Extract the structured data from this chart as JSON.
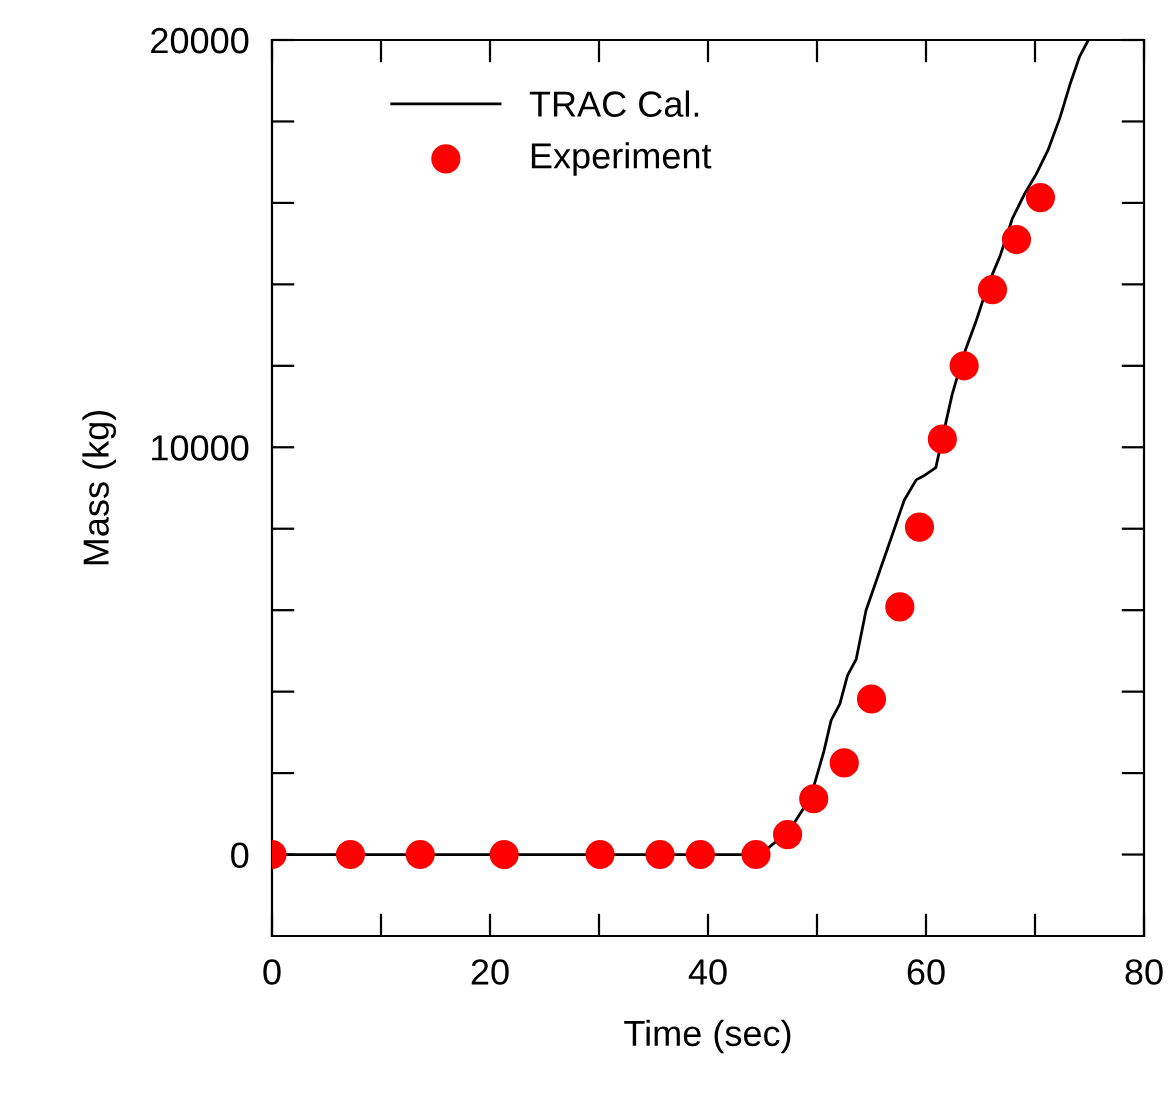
{
  "chart_data": {
    "type": "line",
    "xlabel": "Time (sec)",
    "ylabel": "Mass (kg)",
    "xlim": [
      0,
      80
    ],
    "xticks": [
      0,
      {
        "value": 10,
        "label": null
      },
      20,
      {
        "value": 30,
        "label": null
      },
      40,
      {
        "value": 50,
        "label": null
      },
      60,
      {
        "value": 70,
        "label": null
      },
      80
    ],
    "ylim": [
      -2000,
      20000
    ],
    "yticks": [
      0,
      {
        "value": 2000,
        "label": null
      },
      {
        "value": 4000,
        "label": null
      },
      {
        "value": 6000,
        "label": null
      },
      {
        "value": 8000,
        "label": null
      },
      10000,
      {
        "value": 12000,
        "label": null
      },
      {
        "value": 14000,
        "label": null
      },
      {
        "value": 16000,
        "label": null
      },
      {
        "value": 18000,
        "label": null
      },
      20000
    ],
    "legend": "top left",
    "grid": false,
    "series": [
      {
        "name": "TRAC Cal.",
        "color": "#000000",
        "marker": "none",
        "line_style": "solid",
        "x": [
          0,
          44.8,
          47.5,
          49.4,
          50.6,
          51.3,
          52.1,
          52.8,
          53.6,
          54.5,
          55.8,
          57.1,
          58.0,
          59.1,
          59.8,
          60.9,
          62.4,
          63.5,
          64.6,
          65.7,
          66.8,
          67.9,
          69.0,
          70.1,
          71.2,
          72.3,
          73.2,
          74.1,
          74.9
        ],
        "values": [
          0,
          0,
          600,
          1400,
          2500,
          3300,
          3700,
          4400,
          4800,
          6000,
          7000,
          8000,
          8700,
          9200,
          9300,
          9500,
          11300,
          12300,
          13100,
          14000,
          14700,
          15600,
          16200,
          16700,
          17300,
          18100,
          18900,
          19600,
          20000
        ]
      },
      {
        "name": "Experiment",
        "type": "scatter",
        "color": "#ff0000",
        "marker": "circle",
        "x": [
          0,
          7.2,
          13.6,
          21.3,
          30.1,
          35.6,
          39.3,
          44.4,
          47.3,
          49.7,
          52.5,
          55.0,
          57.6,
          59.4,
          61.5,
          63.5,
          66.1,
          68.3,
          70.5
        ],
        "values": [
          0,
          0,
          0,
          0,
          0,
          0,
          0,
          0,
          490,
          1370,
          2250,
          3820,
          6080,
          8040,
          10200,
          12000,
          13870,
          15100,
          16130
        ]
      }
    ]
  }
}
